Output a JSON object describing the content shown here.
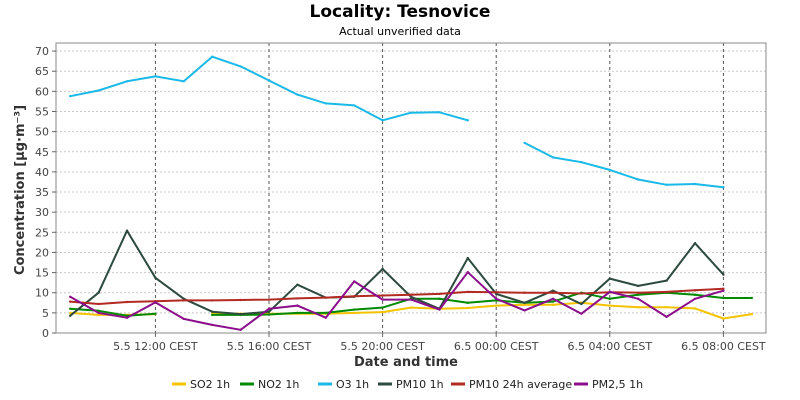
{
  "chart_data": {
    "type": "line",
    "title": "Locality: Tesnovice",
    "subtitle": "Actual unverified data",
    "xlabel": "Date and time",
    "ylabel": "Concentration [µg·m⁻³]",
    "ylim": [
      0,
      72
    ],
    "yticks": [
      0,
      5,
      10,
      15,
      20,
      25,
      30,
      35,
      40,
      45,
      50,
      55,
      60,
      65,
      70
    ],
    "x_hours": [
      9,
      10,
      11,
      12,
      13,
      14,
      15,
      16,
      17,
      18,
      19,
      20,
      21,
      22,
      23,
      24,
      25,
      26,
      27,
      28,
      29,
      30,
      31,
      32,
      33
    ],
    "xticks": [
      {
        "hour": 12,
        "label": "5.5 12:00 CEST"
      },
      {
        "hour": 16,
        "label": "5.5 16:00 CEST"
      },
      {
        "hour": 20,
        "label": "5.5 20:00 CEST"
      },
      {
        "hour": 24,
        "label": "6.5 00:00 CEST"
      },
      {
        "hour": 28,
        "label": "6.5 04:00 CEST"
      },
      {
        "hour": 32,
        "label": "6.5 08:00 CEST"
      }
    ],
    "grid": true,
    "legend_position": "bottom",
    "series": [
      {
        "name": "SO2 1h",
        "color": "#f5c400",
        "values": [
          5.0,
          4.5,
          4.5,
          4.7,
          null,
          5.0,
          4.8,
          4.8,
          4.8,
          4.8,
          5.0,
          5.2,
          6.3,
          6.0,
          6.2,
          6.8,
          7.0,
          7.0,
          7.5,
          6.8,
          6.4,
          6.4,
          6.1,
          3.6,
          4.7
        ]
      },
      {
        "name": "NO2 1h",
        "color": "#008a00",
        "values": [
          6.0,
          5.5,
          4.3,
          4.8,
          null,
          4.5,
          4.5,
          4.6,
          5.0,
          5.0,
          5.8,
          6.3,
          8.5,
          8.5,
          7.5,
          8.1,
          7.5,
          7.8,
          10.0,
          8.5,
          9.5,
          10.0,
          9.5,
          8.7,
          8.7
        ]
      },
      {
        "name": "O3 1h",
        "color": "#1ab9e8",
        "values": [
          58.8,
          60.2,
          62.5,
          63.7,
          62.5,
          68.6,
          66.2,
          62.7,
          59.2,
          57.0,
          56.5,
          52.8,
          54.7,
          54.8,
          52.8,
          null,
          47.2,
          43.6,
          42.4,
          40.5,
          38.1,
          36.8,
          37.0,
          36.2,
          null
        ]
      },
      {
        "name": "PM10 1h",
        "color": "#2d4a3e",
        "values": [
          4.3,
          10.0,
          25.4,
          13.7,
          8.5,
          5.3,
          4.7,
          5.3,
          12.0,
          8.8,
          9.0,
          15.9,
          9.0,
          6.0,
          18.6,
          9.7,
          7.5,
          10.5,
          7.2,
          13.5,
          11.7,
          13.0,
          22.3,
          14.5,
          null
        ]
      },
      {
        "name": "PM10 24h average",
        "color": "#b22a22",
        "values": [
          7.8,
          7.2,
          7.7,
          7.9,
          8.1,
          8.1,
          8.2,
          8.3,
          8.6,
          8.8,
          9.1,
          9.3,
          9.5,
          9.7,
          10.2,
          10.1,
          10.0,
          10.0,
          9.8,
          10.1,
          10.0,
          10.2,
          10.6,
          11.0,
          null
        ]
      },
      {
        "name": "PM2,5 1h",
        "color": "#8b0f8b",
        "values": [
          9.0,
          5.0,
          3.8,
          7.6,
          3.5,
          2.0,
          0.8,
          6.0,
          6.8,
          3.8,
          12.8,
          8.3,
          8.3,
          5.8,
          15.1,
          8.5,
          5.6,
          8.5,
          4.8,
          10.2,
          8.5,
          4.0,
          8.5,
          10.5,
          null
        ]
      }
    ]
  }
}
